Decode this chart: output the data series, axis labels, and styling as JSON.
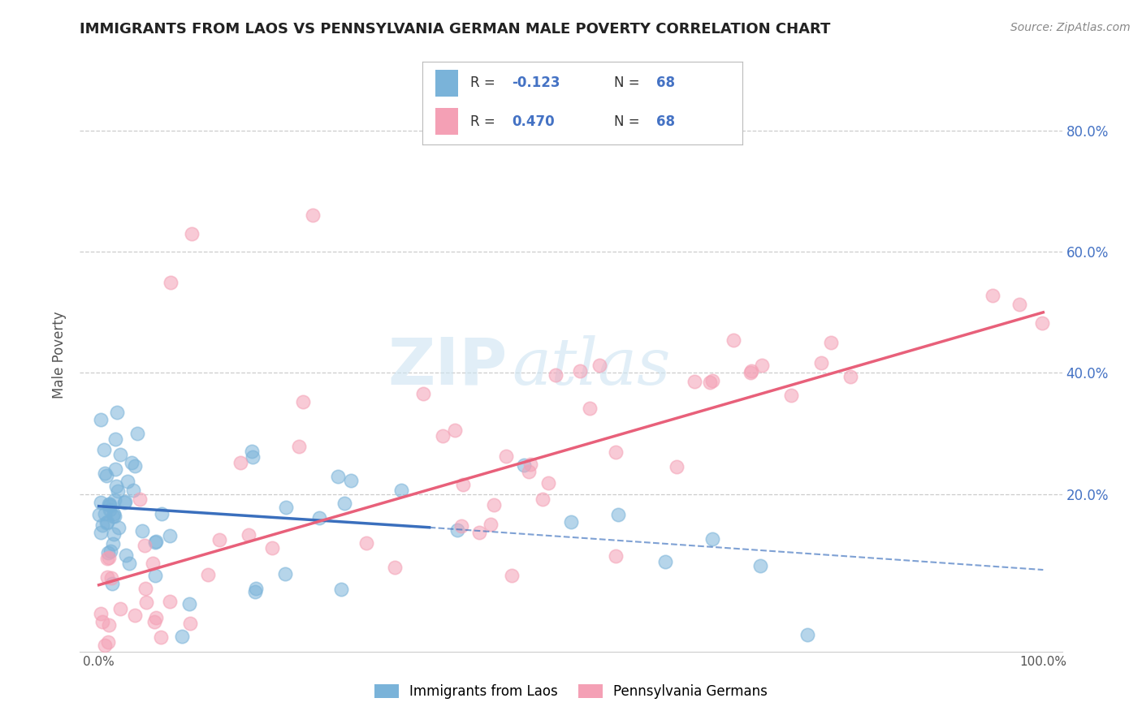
{
  "title": "IMMIGRANTS FROM LAOS VS PENNSYLVANIA GERMAN MALE POVERTY CORRELATION CHART",
  "source_text": "Source: ZipAtlas.com",
  "ylabel": "Male Poverty",
  "xlim": [
    -0.02,
    1.02
  ],
  "ylim": [
    -0.06,
    0.92
  ],
  "xtick_positions": [
    0.0,
    1.0
  ],
  "xtick_labels": [
    "0.0%",
    "100.0%"
  ],
  "ytick_positions": [
    0.2,
    0.4,
    0.6,
    0.8
  ],
  "ytick_labels": [
    "20.0%",
    "40.0%",
    "60.0%",
    "80.0%"
  ],
  "grid_color": "#cccccc",
  "background_color": "#ffffff",
  "watermark_zip": "ZIP",
  "watermark_atlas": "atlas",
  "series1_color": "#7ab3d9",
  "series2_color": "#f4a0b5",
  "line1_color": "#3a6fbd",
  "line2_color": "#e8607a",
  "title_fontsize": 13,
  "legend_label1": "Immigrants from Laos",
  "legend_label2": "Pennsylvania Germans",
  "tick_color": "#4472c4",
  "R1": -0.123,
  "R2": 0.47,
  "N": 68,
  "line1_x0": 0.0,
  "line1_y0": 0.18,
  "line1_x1": 0.35,
  "line1_y1": 0.145,
  "line1_dash_x0": 0.35,
  "line1_dash_y0": 0.145,
  "line1_dash_x1": 1.0,
  "line1_dash_y1": 0.075,
  "line2_x0": 0.0,
  "line2_y0": 0.05,
  "line2_x1": 1.0,
  "line2_y1": 0.5
}
